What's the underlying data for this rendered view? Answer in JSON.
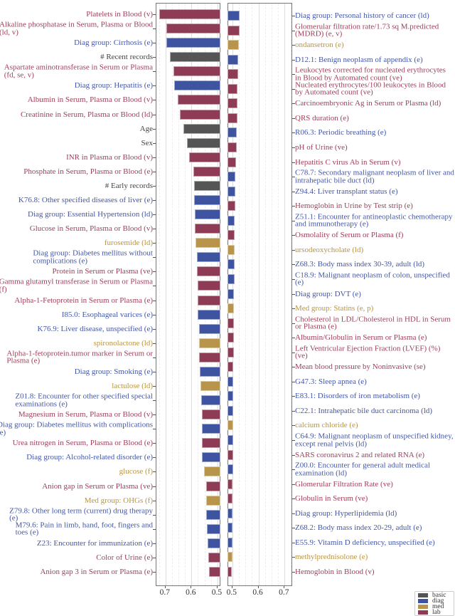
{
  "chart_data": {
    "type": "bar",
    "orientation": "horizontal",
    "title": "",
    "xlabel": "",
    "colors": {
      "basic": "#555555",
      "diag": "#3f54a0",
      "med": "#b8954a",
      "lab": "#8e3b55"
    },
    "text_colors": {
      "basic": "#444444",
      "diag": "#4356a8",
      "med": "#b89540",
      "lab": "#a03f5a"
    },
    "legend": {
      "position": "bottom-right",
      "entries": [
        "basic",
        "diag",
        "med",
        "lab"
      ]
    },
    "panels": [
      {
        "name": "left",
        "xlim": [
          0.735,
          0.486
        ],
        "xticks": [
          "0.7",
          "0.6",
          "0.5"
        ],
        "xtick_values": [
          0.7,
          0.6,
          0.5
        ],
        "bars": [
          {
            "label": [
              "Platelets in Blood (v)"
            ],
            "group": "lab",
            "value": 0.722
          },
          {
            "label": [
              "Alkaline phosphatase in Serum, Plasma or Blood",
              "(ld, v)"
            ],
            "group": "lab",
            "value": 0.695
          },
          {
            "label": [
              "Diag group: Cirrhosis (e)"
            ],
            "group": "diag",
            "value": 0.694
          },
          {
            "label": [
              "# Recent records"
            ],
            "group": "basic",
            "value": 0.679
          },
          {
            "label": [
              "Aspartate aminotransferase in Serum or Plasma",
              "(fd, se, v)"
            ],
            "group": "lab",
            "value": 0.667
          },
          {
            "label": [
              "Diag group: Hepatitis (e)"
            ],
            "group": "diag",
            "value": 0.665
          },
          {
            "label": [
              "Albumin in Serum, Plasma or Blood (v)"
            ],
            "group": "lab",
            "value": 0.649
          },
          {
            "label": [
              "Creatinine in Serum, Plasma or Blood (ld)"
            ],
            "group": "lab",
            "value": 0.642
          },
          {
            "label": [
              "Age"
            ],
            "group": "basic",
            "value": 0.629
          },
          {
            "label": [
              "Sex"
            ],
            "group": "basic",
            "value": 0.614
          },
          {
            "label": [
              "INR in Plasma or Blood (v)"
            ],
            "group": "lab",
            "value": 0.606
          },
          {
            "label": [
              "Phosphate in Serum, Plasma or Blood (e)"
            ],
            "group": "lab",
            "value": 0.591
          },
          {
            "label": [
              "# Early records"
            ],
            "group": "basic",
            "value": 0.588
          },
          {
            "label": [
              "K76.8: Other specified diseases of liver (e)"
            ],
            "group": "diag",
            "value": 0.587
          },
          {
            "label": [
              "Diag group: Essential Hypertension (ld)"
            ],
            "group": "diag",
            "value": 0.585
          },
          {
            "label": [
              "Glucose in Serum, Plasma or Blood (v)"
            ],
            "group": "lab",
            "value": 0.584
          },
          {
            "label": [
              "furosemide (ld)"
            ],
            "group": "med",
            "value": 0.583
          },
          {
            "label": [
              "Diag group: Diabetes mellitus without",
              "complications (e)"
            ],
            "group": "diag",
            "value": 0.577
          },
          {
            "label": [
              "Protein in Serum or Plasma (ve)"
            ],
            "group": "lab",
            "value": 0.575
          },
          {
            "label": [
              "Gamma glutamyl transferase in Serum or Plasma",
              "(f)"
            ],
            "group": "lab",
            "value": 0.574
          },
          {
            "label": [
              "Alpha-1-Fetoprotein in Serum or Plasma (e)"
            ],
            "group": "lab",
            "value": 0.574
          },
          {
            "label": [
              "I85.0: Esophageal varices (e)"
            ],
            "group": "diag",
            "value": 0.573
          },
          {
            "label": [
              "K76.9: Liver disease, unspecified (e)"
            ],
            "group": "diag",
            "value": 0.569
          },
          {
            "label": [
              "spironolactone (ld)"
            ],
            "group": "med",
            "value": 0.568
          },
          {
            "label": [
              "Alpha-1-fetoprotein.tumor marker in Serum or",
              "Plasma (e)"
            ],
            "group": "lab",
            "value": 0.567
          },
          {
            "label": [
              "Diag group: Smoking (e)"
            ],
            "group": "diag",
            "value": 0.564
          },
          {
            "label": [
              "lactulose (ld)"
            ],
            "group": "med",
            "value": 0.563
          },
          {
            "label": [
              "Z01.8: Encounter for other specified special",
              "examinations (e)"
            ],
            "group": "diag",
            "value": 0.56
          },
          {
            "label": [
              "Magnesium in Serum, Plasma or Blood (v)"
            ],
            "group": "lab",
            "value": 0.558
          },
          {
            "label": [
              "Diag group: Diabetes mellitus with complications",
              "(e)"
            ],
            "group": "diag",
            "value": 0.558
          },
          {
            "label": [
              "Urea nitrogen in Serum, Plasma or Blood (e)"
            ],
            "group": "lab",
            "value": 0.557
          },
          {
            "label": [
              "Diag group: Alcohol-related disorder (e)"
            ],
            "group": "diag",
            "value": 0.556
          },
          {
            "label": [
              "glucose (f)"
            ],
            "group": "med",
            "value": 0.55
          },
          {
            "label": [
              "Anion gap in Serum or Plasma (ve)"
            ],
            "group": "lab",
            "value": 0.542
          },
          {
            "label": [
              "Med group: OHGs (f)"
            ],
            "group": "med",
            "value": 0.541
          },
          {
            "label": [
              "Z79.8: Other long term (current) drug therapy",
              "(e)"
            ],
            "group": "diag",
            "value": 0.54
          },
          {
            "label": [
              "M79.6: Pain in limb, hand, foot, fingers and",
              "toes (e)"
            ],
            "group": "diag",
            "value": 0.537
          },
          {
            "label": [
              "Z23: Encounter for immunization (e)"
            ],
            "group": "diag",
            "value": 0.535
          },
          {
            "label": [
              "Color of Urine (e)"
            ],
            "group": "lab",
            "value": 0.533
          },
          {
            "label": [
              "Anion gap 3 in Serum or Plasma (e)"
            ],
            "group": "lab",
            "value": 0.529
          }
        ]
      },
      {
        "name": "right",
        "xlim": [
          0.484,
          0.732
        ],
        "xticks": [
          "0.5",
          "0.6",
          "0.7"
        ],
        "xtick_values": [
          0.5,
          0.6,
          0.7
        ],
        "bars": [
          {
            "label": [
              "Diag group: Personal history of cancer (ld)"
            ],
            "group": "diag",
            "value": 0.529
          },
          {
            "label": [
              "Glomerular filtration rate/1.73 sq M.predicted",
              "(MDRD) (e, v)"
            ],
            "group": "lab",
            "value": 0.529
          },
          {
            "label": [
              "ondansetron (e)"
            ],
            "group": "med",
            "value": 0.528
          },
          {
            "label": [
              "D12.1: Benign neoplasm of appendix (e)"
            ],
            "group": "diag",
            "value": 0.525
          },
          {
            "label": [
              "Leukocytes corrected for nucleated erythrocytes",
              "in Blood by Automated count (ve)"
            ],
            "group": "lab",
            "value": 0.524
          },
          {
            "label": [
              "Nucleated erythrocytes/100 leukocytes in Blood",
              "by Automated count (ve)"
            ],
            "group": "lab",
            "value": 0.523
          },
          {
            "label": [
              "Carcinoembryonic Ag in Serum or Plasma (ld)"
            ],
            "group": "lab",
            "value": 0.522
          },
          {
            "label": [
              "QRS duration (e)"
            ],
            "group": "lab",
            "value": 0.522
          },
          {
            "label": [
              "R06.3: Periodic breathing (e)"
            ],
            "group": "diag",
            "value": 0.52
          },
          {
            "label": [
              "pH of Urine (ve)"
            ],
            "group": "lab",
            "value": 0.519
          },
          {
            "label": [
              "Hepatitis C virus Ab in Serum (v)"
            ],
            "group": "lab",
            "value": 0.516
          },
          {
            "label": [
              "C78.7: Secondary malignant neoplasm of liver and",
              "intrahepatic bile duct (ld)"
            ],
            "group": "diag",
            "value": 0.514
          },
          {
            "label": [
              "Z94.4: Liver transplant status (e)"
            ],
            "group": "diag",
            "value": 0.514
          },
          {
            "label": [
              "Hemoglobin in Urine by Test strip (e)"
            ],
            "group": "lab",
            "value": 0.514
          },
          {
            "label": [
              "Z51.1: Encounter for antineoplastic chemotherapy",
              "and immunotherapy (e)"
            ],
            "group": "diag",
            "value": 0.512
          },
          {
            "label": [
              "Osmolality of Serum or Plasma (f)"
            ],
            "group": "lab",
            "value": 0.512
          },
          {
            "label": [
              "ursodeoxycholate (ld)"
            ],
            "group": "med",
            "value": 0.512
          },
          {
            "label": [
              "Z68.3: Body mass index 30-39, adult (ld)"
            ],
            "group": "diag",
            "value": 0.511
          },
          {
            "label": [
              "C18.9: Malignant neoplasm of colon, unspecified",
              "(e)"
            ],
            "group": "diag",
            "value": 0.511
          },
          {
            "label": [
              "Diag group: DVT (e)"
            ],
            "group": "diag",
            "value": 0.509
          },
          {
            "label": [
              "Med group: Statins (e, p)"
            ],
            "group": "med",
            "value": 0.509
          },
          {
            "label": [
              "Cholesterol in LDL/Cholesterol in HDL in Serum",
              "or Plasma (e)"
            ],
            "group": "lab",
            "value": 0.508
          },
          {
            "label": [
              "Albumin/Globulin in Serum or Plasma (e)"
            ],
            "group": "lab",
            "value": 0.508
          },
          {
            "label": [
              "Left Ventricular Ejection Fraction (LVEF) (%)",
              "(ve)"
            ],
            "group": "lab",
            "value": 0.508
          },
          {
            "label": [
              "Mean blood pressure by Noninvasive (se)"
            ],
            "group": "lab",
            "value": 0.507
          },
          {
            "label": [
              "G47.3: Sleep apnea (e)"
            ],
            "group": "diag",
            "value": 0.507
          },
          {
            "label": [
              "E83.1: Disorders of iron metabolism (e)"
            ],
            "group": "diag",
            "value": 0.506
          },
          {
            "label": [
              "C22.1: Intrahepatic bile duct carcinoma (ld)"
            ],
            "group": "diag",
            "value": 0.505
          },
          {
            "label": [
              "calcium chloride (e)"
            ],
            "group": "med",
            "value": 0.506
          },
          {
            "label": [
              "C64.9: Malignant neoplasm of unspecified kidney,",
              "except renal pelvis (ld)"
            ],
            "group": "diag",
            "value": 0.505
          },
          {
            "label": [
              "SARS coronavirus 2 and related RNA (e)"
            ],
            "group": "lab",
            "value": 0.505
          },
          {
            "label": [
              "Z00.0: Encounter for general adult medical",
              "examination (ld)"
            ],
            "group": "diag",
            "value": 0.505
          },
          {
            "label": [
              "Glomerular Filtration Rate (ve)"
            ],
            "group": "lab",
            "value": 0.504
          },
          {
            "label": [
              "Globulin in Serum (ve)"
            ],
            "group": "lab",
            "value": 0.504
          },
          {
            "label": [
              "Diag group: Hyperlipidemia (ld)"
            ],
            "group": "diag",
            "value": 0.503
          },
          {
            "label": [
              "Z68.2: Body mass index 20-29, adult (e)"
            ],
            "group": "diag",
            "value": 0.503
          },
          {
            "label": [
              "E55.9: Vitamin D deficiency, unspecified (e)"
            ],
            "group": "diag",
            "value": 0.503
          },
          {
            "label": [
              "methylprednisolone (e)"
            ],
            "group": "med",
            "value": 0.502
          },
          {
            "label": [
              "Hemoglobin in Blood (v)"
            ],
            "group": "lab",
            "value": 0.5
          }
        ]
      }
    ]
  }
}
